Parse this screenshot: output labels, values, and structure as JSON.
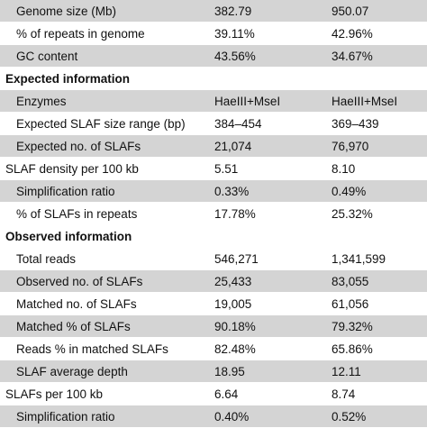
{
  "rows": [
    {
      "kind": "data",
      "shade": true,
      "indent": true,
      "label": "Genome size (Mb)",
      "a": "382.79",
      "b": "950.07"
    },
    {
      "kind": "data",
      "shade": false,
      "indent": true,
      "label": "% of repeats in genome",
      "a": "39.11%",
      "b": "42.96%"
    },
    {
      "kind": "data",
      "shade": true,
      "indent": true,
      "label": "GC content",
      "a": "43.56%",
      "b": "34.67%"
    },
    {
      "kind": "section",
      "label": "Expected information"
    },
    {
      "kind": "data",
      "shade": true,
      "indent": true,
      "label": "Enzymes",
      "a": "HaeIII+MseI",
      "b": "HaeIII+MseI"
    },
    {
      "kind": "data",
      "shade": false,
      "indent": true,
      "label": "Expected SLAF size range (bp)",
      "a": "384–454",
      "b": "369–439"
    },
    {
      "kind": "data",
      "shade": true,
      "indent": true,
      "label": "Expected no. of SLAFs",
      "a": "21,074",
      "b": "76,970"
    },
    {
      "kind": "data",
      "shade": false,
      "indent": false,
      "label": "SLAF density per 100 kb",
      "a": "5.51",
      "b": "8.10"
    },
    {
      "kind": "data",
      "shade": true,
      "indent": true,
      "label": "Simplification ratio",
      "a": "0.33%",
      "b": "0.49%"
    },
    {
      "kind": "data",
      "shade": false,
      "indent": true,
      "label": "% of SLAFs in repeats",
      "a": "17.78%",
      "b": "25.32%"
    },
    {
      "kind": "section",
      "label": "Observed information"
    },
    {
      "kind": "data",
      "shade": false,
      "indent": true,
      "label": "Total reads",
      "a": "546,271",
      "b": "1,341,599"
    },
    {
      "kind": "data",
      "shade": true,
      "indent": true,
      "label": "Observed no. of SLAFs",
      "a": "25,433",
      "b": "83,055"
    },
    {
      "kind": "data",
      "shade": false,
      "indent": true,
      "label": "Matched no. of SLAFs",
      "a": "19,005",
      "b": "61,056"
    },
    {
      "kind": "data",
      "shade": true,
      "indent": true,
      "label": "Matched % of SLAFs",
      "a": "90.18%",
      "b": "79.32%"
    },
    {
      "kind": "data",
      "shade": false,
      "indent": true,
      "label": "Reads % in matched SLAFs",
      "a": "82.48%",
      "b": "65.86%"
    },
    {
      "kind": "data",
      "shade": true,
      "indent": true,
      "label": "SLAF average depth",
      "a": "18.95",
      "b": "12.11"
    },
    {
      "kind": "data",
      "shade": false,
      "indent": false,
      "label": "SLAFs per 100 kb",
      "a": "6.64",
      "b": "8.74"
    },
    {
      "kind": "data",
      "shade": true,
      "indent": true,
      "label": "Simplification ratio",
      "a": "0.40%",
      "b": "0.52%"
    }
  ],
  "colors": {
    "shade": "#d4d4d4",
    "white": "#ffffff",
    "text": "#111111"
  }
}
